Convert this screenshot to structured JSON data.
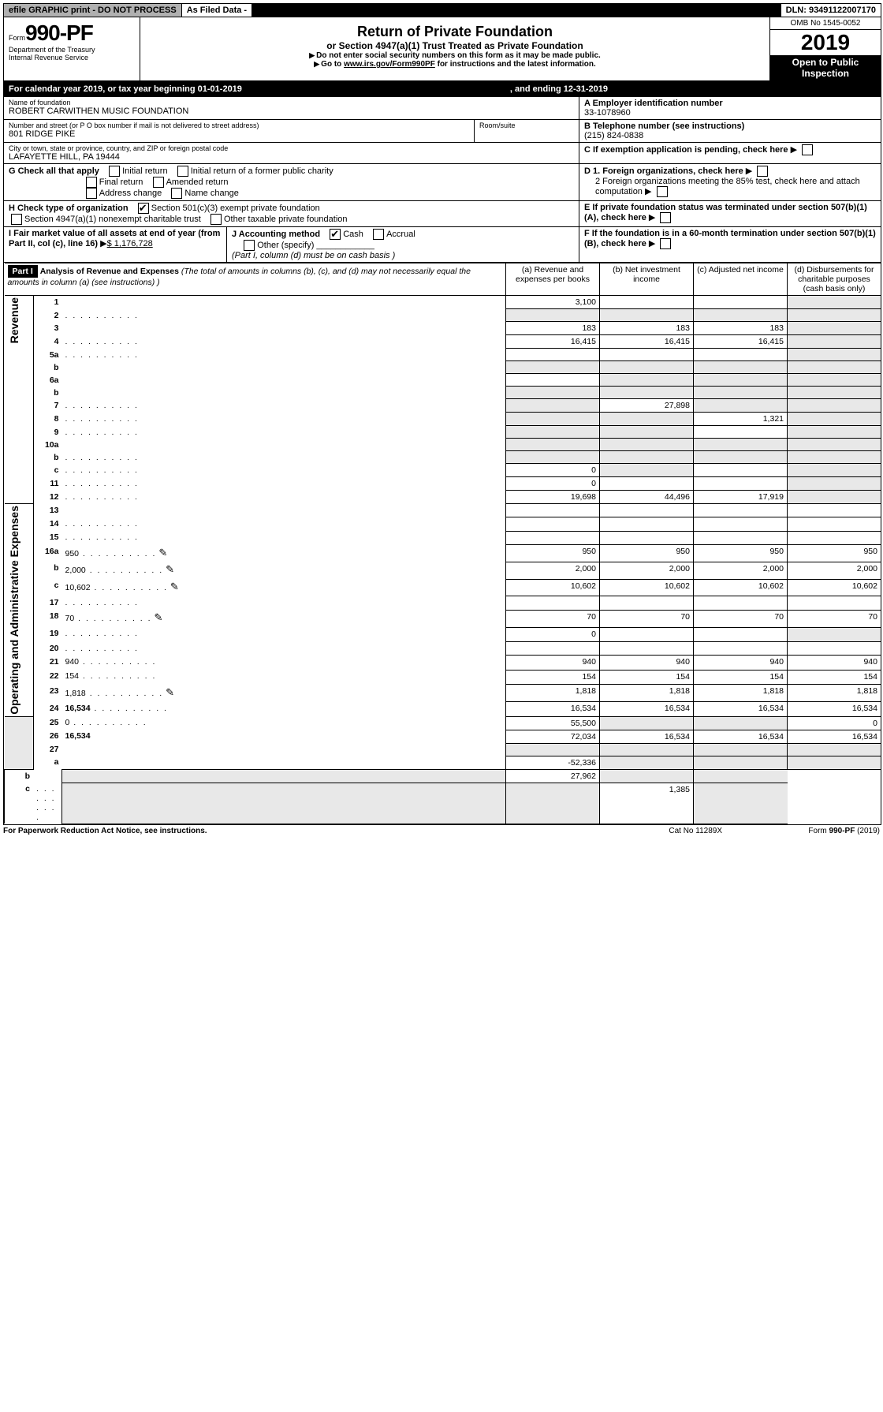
{
  "topbar": {
    "efile": "efile GRAPHIC print - DO NOT PROCESS",
    "asfiled": "As Filed Data -",
    "dln": "DLN: 93491122007170"
  },
  "header": {
    "form_word": "Form",
    "form_num": "990-PF",
    "dept": "Department of the Treasury",
    "irs": "Internal Revenue Service",
    "title": "Return of Private Foundation",
    "subtitle": "or Section 4947(a)(1) Trust Treated as Private Foundation",
    "note1": "Do not enter social security numbers on this form as it may be made public.",
    "note2_pre": "Go to ",
    "note2_link": "www.irs.gov/Form990PF",
    "note2_post": " for instructions and the latest information.",
    "omb": "OMB No 1545-0052",
    "year": "2019",
    "open": "Open to Public Inspection"
  },
  "calbar": {
    "pre": "For calendar year 2019, or tax year beginning 01-01-2019",
    "mid": ", and ending 12-31-2019"
  },
  "id": {
    "name_label": "Name of foundation",
    "name": "ROBERT CARWITHEN MUSIC FOUNDATION",
    "addr_label": "Number and street (or P O  box number if mail is not delivered to street address)",
    "addr": "801 RIDGE PIKE",
    "room_label": "Room/suite",
    "city_label": "City or town, state or province, country, and ZIP or foreign postal code",
    "city": "LAFAYETTE HILL, PA  19444",
    "ein_label": "A Employer identification number",
    "ein": "33-1078960",
    "phone_label": "B Telephone number (see instructions)",
    "phone": "(215) 824-0838",
    "C": "C If exemption application is pending, check here",
    "D1": "D 1. Foreign organizations, check here",
    "D2": "2 Foreign organizations meeting the 85% test, check here and attach computation",
    "E": "E  If private foundation status was terminated under section 507(b)(1)(A), check here",
    "F": "F  If the foundation is in a 60-month termination under section 507(b)(1)(B), check here"
  },
  "G": {
    "label": "G Check all that apply",
    "o1": "Initial return",
    "o2": "Initial return of a former public charity",
    "o3": "Final return",
    "o4": "Amended return",
    "o5": "Address change",
    "o6": "Name change"
  },
  "H": {
    "label": "H Check type of organization",
    "o1": "Section 501(c)(3) exempt private foundation",
    "o2": "Section 4947(a)(1) nonexempt charitable trust",
    "o3": "Other taxable private foundation"
  },
  "I": {
    "label": "I Fair market value of all assets at end of year (from Part II, col  (c), line 16)",
    "val": "$  1,176,728"
  },
  "J": {
    "label": "J Accounting method",
    "cash": "Cash",
    "accrual": "Accrual",
    "other": "Other (specify)",
    "note": "(Part I, column (d) must be on cash basis )"
  },
  "part1": {
    "tag": "Part I",
    "head": "Analysis of Revenue and Expenses",
    "paren": " (The total of amounts in columns (b), (c), and (d) may not necessarily equal the amounts in column (a) (see instructions) )",
    "cols": {
      "a": "(a)   Revenue and expenses per books",
      "b": "(b)  Net investment income",
      "c": "(c)  Adjusted net income",
      "d": "(d)  Disbursements for charitable purposes (cash basis only)"
    }
  },
  "sections": {
    "rev": "Revenue",
    "exp": "Operating and Administrative Expenses"
  },
  "rows": [
    {
      "n": "1",
      "d": "",
      "a": "3,100",
      "b": "",
      "c": "",
      "sh": [
        "d"
      ]
    },
    {
      "n": "2",
      "d": "",
      "dots": true,
      "a": "",
      "b": "",
      "c": "",
      "sh": [
        "a",
        "b",
        "c",
        "d"
      ],
      "noA": true
    },
    {
      "n": "3",
      "d": "",
      "a": "183",
      "b": "183",
      "c": "183",
      "sh": [
        "d"
      ]
    },
    {
      "n": "4",
      "d": "",
      "dots": true,
      "a": "16,415",
      "b": "16,415",
      "c": "16,415",
      "sh": [
        "d"
      ]
    },
    {
      "n": "5a",
      "d": "",
      "dots": true,
      "a": "",
      "b": "",
      "c": "",
      "sh": [
        "d"
      ]
    },
    {
      "n": "b",
      "d": "",
      "a": "",
      "b": "",
      "c": "",
      "sh": [
        "a",
        "b",
        "c",
        "d"
      ]
    },
    {
      "n": "6a",
      "d": "",
      "a": "",
      "b": "",
      "c": "",
      "sh": [
        "b",
        "c",
        "d"
      ]
    },
    {
      "n": "b",
      "d": "",
      "a": "",
      "b": "",
      "c": "",
      "sh": [
        "a",
        "b",
        "c",
        "d"
      ]
    },
    {
      "n": "7",
      "d": "",
      "dots": true,
      "a": "",
      "b": "27,898",
      "c": "",
      "sh": [
        "a",
        "c",
        "d"
      ]
    },
    {
      "n": "8",
      "d": "",
      "dots": true,
      "a": "",
      "b": "",
      "c": "1,321",
      "sh": [
        "a",
        "b",
        "d"
      ]
    },
    {
      "n": "9",
      "d": "",
      "dots": true,
      "a": "",
      "b": "",
      "c": "",
      "sh": [
        "a",
        "b",
        "d"
      ]
    },
    {
      "n": "10a",
      "d": "",
      "a": "",
      "b": "",
      "c": "",
      "sh": [
        "a",
        "b",
        "c",
        "d"
      ]
    },
    {
      "n": "b",
      "d": "",
      "dots": true,
      "a": "",
      "b": "",
      "c": "",
      "sh": [
        "a",
        "b",
        "c",
        "d"
      ]
    },
    {
      "n": "c",
      "d": "",
      "dots": true,
      "a": "0",
      "b": "",
      "c": "",
      "sh": [
        "b",
        "d"
      ]
    },
    {
      "n": "11",
      "d": "",
      "dots": true,
      "a": "0",
      "b": "",
      "c": "",
      "sh": [
        "d"
      ]
    },
    {
      "n": "12",
      "d": "",
      "dots": true,
      "bold": true,
      "a": "19,698",
      "b": "44,496",
      "c": "17,919",
      "sh": [
        "d"
      ]
    },
    {
      "n": "13",
      "d": "",
      "a": "",
      "b": "",
      "c": ""
    },
    {
      "n": "14",
      "d": "",
      "dots": true,
      "a": "",
      "b": "",
      "c": ""
    },
    {
      "n": "15",
      "d": "",
      "dots": true,
      "a": "",
      "b": "",
      "c": ""
    },
    {
      "n": "16a",
      "d": "950",
      "dots": true,
      "pen": true,
      "a": "950",
      "b": "950",
      "c": "950"
    },
    {
      "n": "b",
      "d": "2,000",
      "dots": true,
      "pen": true,
      "a": "2,000",
      "b": "2,000",
      "c": "2,000"
    },
    {
      "n": "c",
      "d": "10,602",
      "dots": true,
      "pen": true,
      "a": "10,602",
      "b": "10,602",
      "c": "10,602"
    },
    {
      "n": "17",
      "d": "",
      "dots": true,
      "a": "",
      "b": "",
      "c": ""
    },
    {
      "n": "18",
      "d": "70",
      "dots": true,
      "pen": true,
      "a": "70",
      "b": "70",
      "c": "70"
    },
    {
      "n": "19",
      "d": "",
      "dots": true,
      "a": "0",
      "b": "",
      "c": "",
      "sh": [
        "d"
      ]
    },
    {
      "n": "20",
      "d": "",
      "dots": true,
      "a": "",
      "b": "",
      "c": ""
    },
    {
      "n": "21",
      "d": "940",
      "dots": true,
      "a": "940",
      "b": "940",
      "c": "940"
    },
    {
      "n": "22",
      "d": "154",
      "dots": true,
      "a": "154",
      "b": "154",
      "c": "154"
    },
    {
      "n": "23",
      "d": "1,818",
      "dots": true,
      "pen": true,
      "a": "1,818",
      "b": "1,818",
      "c": "1,818"
    },
    {
      "n": "24",
      "d": "16,534",
      "dots": true,
      "bold": true,
      "a": "16,534",
      "b": "16,534",
      "c": "16,534"
    },
    {
      "n": "25",
      "d": "0",
      "dots": true,
      "a": "55,500",
      "b": "",
      "c": "",
      "sh": [
        "b",
        "c"
      ]
    },
    {
      "n": "26",
      "d": "16,534",
      "bold": true,
      "a": "72,034",
      "b": "16,534",
      "c": "16,534"
    },
    {
      "n": "27",
      "d": "",
      "a": "",
      "b": "",
      "c": "",
      "sh": [
        "a",
        "b",
        "c",
        "d"
      ]
    },
    {
      "n": "a",
      "d": "",
      "bold": true,
      "a": "-52,336",
      "b": "",
      "c": "",
      "sh": [
        "b",
        "c",
        "d"
      ]
    },
    {
      "n": "b",
      "d": "",
      "bold": true,
      "a": "",
      "b": "27,962",
      "c": "",
      "sh": [
        "a",
        "c",
        "d"
      ]
    },
    {
      "n": "c",
      "d": "",
      "dots": true,
      "bold": true,
      "a": "",
      "b": "",
      "c": "1,385",
      "sh": [
        "a",
        "b",
        "d"
      ]
    }
  ],
  "footer": {
    "left": "For Paperwork Reduction Act Notice, see instructions.",
    "mid": "Cat  No  11289X",
    "right": "Form 990-PF (2019)"
  }
}
